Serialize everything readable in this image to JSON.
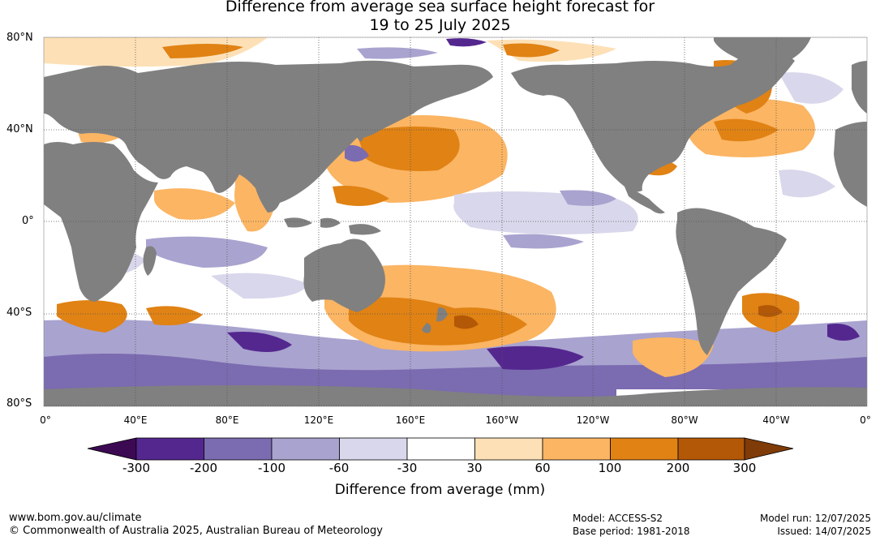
{
  "title_line1": "Difference from average sea surface height forecast for",
  "title_line2": "19 to 25 July 2025",
  "lat_labels": [
    "80°N",
    "40°N",
    "0°",
    "40°S",
    "80°S"
  ],
  "lon_labels": [
    "0°",
    "40°E",
    "80°E",
    "120°E",
    "160°E",
    "160°W",
    "120°W",
    "80°W",
    "40°W",
    "0°"
  ],
  "colorbar": {
    "title": "Difference from average (mm)",
    "tick_labels": [
      "-300",
      "-200",
      "-100",
      "-60",
      "-30",
      "30",
      "60",
      "100",
      "200",
      "300"
    ],
    "colors": [
      "#3c0a52",
      "#54278f",
      "#7b6bb0",
      "#a9a3cf",
      "#d9d7eb",
      "#ffffff",
      "#fde0b6",
      "#fbb563",
      "#e08214",
      "#b35806",
      "#7f3b08"
    ]
  },
  "map_colors": {
    "land": "#808080",
    "ocean_neutral": "#ffffff",
    "grid": "#555555"
  },
  "footer": {
    "url": "www.bom.gov.au/climate",
    "copyright": "© Commonwealth of Australia 2025, Australian Bureau of Meteorology",
    "model": "Model: ACCESS-S2",
    "base_period": "Base period: 1981-2018",
    "model_run": "Model run: 12/07/2025",
    "issued": "Issued: 14/07/2025"
  }
}
